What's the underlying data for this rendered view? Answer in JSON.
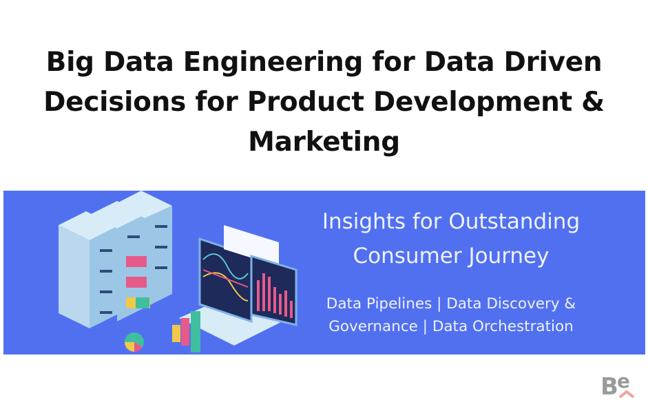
{
  "title": {
    "lines": [
      "Big Data Engineering for Data Driven",
      "Decisions for Product Development &",
      "Marketing"
    ]
  },
  "banner": {
    "background_color": "#5170f0",
    "headline_lines": [
      "Insights for Outstanding",
      "Consumer Journey"
    ],
    "sub_lines": [
      "Data Pipelines | Data Discovery &",
      "Governance | Data Orchestration"
    ],
    "illustration": "isometric-servers-laptop-charts"
  },
  "logo": {
    "text": "Be",
    "icon": "brand-logo"
  }
}
